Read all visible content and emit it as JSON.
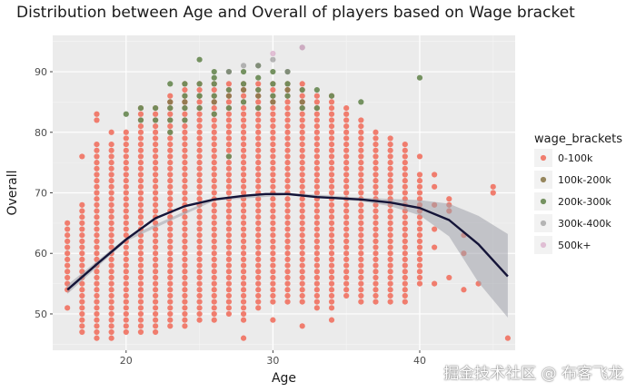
{
  "watermark": "掘金技术社区 @ 布客飞龙",
  "chart_data": {
    "type": "scatter",
    "title": "Distribution between Age and Overall of players based on Wage bracket",
    "xlabel": "Age",
    "ylabel": "Overall",
    "xlim": [
      15,
      46.5
    ],
    "ylim": [
      44,
      96
    ],
    "x_ticks": [
      20,
      30,
      40
    ],
    "y_ticks": [
      50,
      60,
      70,
      80,
      90
    ],
    "grid": true,
    "legend": {
      "title": "wage_brackets",
      "position": "right",
      "entries": [
        {
          "label": "0-100k",
          "color": "#f07d6e",
          "opacity": 1
        },
        {
          "label": "100k-200k",
          "color": "#8c7a4c",
          "opacity": 0.9
        },
        {
          "label": "200k-300k",
          "color": "#6e8c58",
          "opacity": 0.95
        },
        {
          "label": "300k-400k",
          "color": "#8a8a8a",
          "opacity": 0.6
        },
        {
          "label": "500k+",
          "color": "#d9a8c8",
          "opacity": 0.7
        }
      ]
    },
    "series": [
      {
        "name": "0-100k",
        "column_ranges": [
          {
            "x": 16,
            "ymin": 54,
            "ymax": 65,
            "extra": [
              51
            ]
          },
          {
            "x": 17,
            "ymin": 47,
            "ymax": 68,
            "extra": [
              76
            ]
          },
          {
            "x": 18,
            "ymin": 46,
            "ymax": 78,
            "extra": [
              82,
              83
            ]
          },
          {
            "x": 19,
            "ymin": 46,
            "ymax": 78,
            "extra": [
              80
            ]
          },
          {
            "x": 20,
            "ymin": 47,
            "ymax": 80
          },
          {
            "x": 21,
            "ymin": 47,
            "ymax": 84
          },
          {
            "x": 22,
            "ymin": 47,
            "ymax": 84
          },
          {
            "x": 23,
            "ymin": 48,
            "ymax": 86
          },
          {
            "x": 24,
            "ymin": 48,
            "ymax": 88
          },
          {
            "x": 25,
            "ymin": 49,
            "ymax": 88
          },
          {
            "x": 26,
            "ymin": 49,
            "ymax": 88
          },
          {
            "x": 27,
            "ymin": 50,
            "ymax": 88
          },
          {
            "x": 28,
            "ymin": 49,
            "ymax": 88,
            "extra": [
              46
            ]
          },
          {
            "x": 29,
            "ymin": 51,
            "ymax": 88
          },
          {
            "x": 30,
            "ymin": 52,
            "ymax": 88,
            "extra": [
              49
            ]
          },
          {
            "x": 31,
            "ymin": 52,
            "ymax": 88
          },
          {
            "x": 32,
            "ymin": 52,
            "ymax": 88,
            "extra": [
              48
            ]
          },
          {
            "x": 33,
            "ymin": 51,
            "ymax": 86
          },
          {
            "x": 34,
            "ymin": 51,
            "ymax": 86,
            "extra": [
              49
            ]
          },
          {
            "x": 35,
            "ymin": 53,
            "ymax": 84
          },
          {
            "x": 36,
            "ymin": 52,
            "ymax": 82
          },
          {
            "x": 37,
            "ymin": 52,
            "ymax": 80
          },
          {
            "x": 38,
            "ymin": 52,
            "ymax": 79
          },
          {
            "x": 39,
            "ymin": 52,
            "ymax": 78
          },
          {
            "x": 40,
            "ymin": 55,
            "ymax": 73,
            "extra": [
              76
            ]
          }
        ],
        "points": [
          {
            "x": 41,
            "y": 55
          },
          {
            "x": 41,
            "y": 61
          },
          {
            "x": 41,
            "y": 64
          },
          {
            "x": 41,
            "y": 68
          },
          {
            "x": 41,
            "y": 71
          },
          {
            "x": 41,
            "y": 73
          },
          {
            "x": 42,
            "y": 68
          },
          {
            "x": 42,
            "y": 69
          },
          {
            "x": 42,
            "y": 67
          },
          {
            "x": 42,
            "y": 56
          },
          {
            "x": 43,
            "y": 54
          },
          {
            "x": 43,
            "y": 60
          },
          {
            "x": 43,
            "y": 63
          },
          {
            "x": 44,
            "y": 55
          },
          {
            "x": 45,
            "y": 70
          },
          {
            "x": 45,
            "y": 71
          },
          {
            "x": 46,
            "y": 46
          }
        ]
      },
      {
        "name": "100k-200k",
        "points": [
          {
            "x": 23,
            "y": 85
          },
          {
            "x": 24,
            "y": 85
          },
          {
            "x": 25,
            "y": 86
          },
          {
            "x": 26,
            "y": 85
          },
          {
            "x": 27,
            "y": 86
          },
          {
            "x": 28,
            "y": 87
          },
          {
            "x": 29,
            "y": 86
          },
          {
            "x": 30,
            "y": 85
          },
          {
            "x": 31,
            "y": 87
          },
          {
            "x": 32,
            "y": 85
          }
        ]
      },
      {
        "name": "200k-300k",
        "points": [
          {
            "x": 20,
            "y": 83
          },
          {
            "x": 21,
            "y": 82
          },
          {
            "x": 21,
            "y": 84
          },
          {
            "x": 22,
            "y": 82
          },
          {
            "x": 22,
            "y": 84
          },
          {
            "x": 23,
            "y": 80
          },
          {
            "x": 23,
            "y": 82
          },
          {
            "x": 23,
            "y": 84
          },
          {
            "x": 23,
            "y": 88
          },
          {
            "x": 24,
            "y": 82
          },
          {
            "x": 24,
            "y": 84
          },
          {
            "x": 24,
            "y": 86
          },
          {
            "x": 24,
            "y": 88
          },
          {
            "x": 25,
            "y": 84
          },
          {
            "x": 25,
            "y": 86
          },
          {
            "x": 25,
            "y": 88
          },
          {
            "x": 25,
            "y": 92
          },
          {
            "x": 26,
            "y": 83
          },
          {
            "x": 26,
            "y": 86
          },
          {
            "x": 26,
            "y": 88
          },
          {
            "x": 26,
            "y": 89
          },
          {
            "x": 26,
            "y": 90
          },
          {
            "x": 27,
            "y": 84
          },
          {
            "x": 27,
            "y": 87
          },
          {
            "x": 27,
            "y": 90
          },
          {
            "x": 27,
            "y": 76
          },
          {
            "x": 28,
            "y": 85
          },
          {
            "x": 28,
            "y": 88
          },
          {
            "x": 28,
            "y": 90
          },
          {
            "x": 29,
            "y": 84
          },
          {
            "x": 29,
            "y": 87
          },
          {
            "x": 29,
            "y": 89
          },
          {
            "x": 29,
            "y": 91
          },
          {
            "x": 30,
            "y": 86
          },
          {
            "x": 30,
            "y": 88
          },
          {
            "x": 30,
            "y": 90
          },
          {
            "x": 31,
            "y": 86
          },
          {
            "x": 31,
            "y": 88
          },
          {
            "x": 31,
            "y": 90
          },
          {
            "x": 32,
            "y": 84
          },
          {
            "x": 32,
            "y": 87
          },
          {
            "x": 33,
            "y": 84
          },
          {
            "x": 33,
            "y": 87
          },
          {
            "x": 34,
            "y": 86
          },
          {
            "x": 36,
            "y": 85
          },
          {
            "x": 40,
            "y": 89
          }
        ]
      },
      {
        "name": "300k-400k",
        "points": [
          {
            "x": 27,
            "y": 90
          },
          {
            "x": 28,
            "y": 91
          },
          {
            "x": 29,
            "y": 91
          },
          {
            "x": 30,
            "y": 92
          },
          {
            "x": 31,
            "y": 90
          },
          {
            "x": 32,
            "y": 94
          }
        ]
      },
      {
        "name": "500k+",
        "points": [
          {
            "x": 30,
            "y": 93
          },
          {
            "x": 32,
            "y": 94
          }
        ]
      }
    ],
    "smooth": {
      "color": "#141438",
      "band_color": "#a0a3ab",
      "points": [
        {
          "x": 16,
          "y": 54
        },
        {
          "x": 18,
          "y": 58.2
        },
        {
          "x": 20,
          "y": 62.3
        },
        {
          "x": 22,
          "y": 65.8
        },
        {
          "x": 24,
          "y": 67.8
        },
        {
          "x": 26,
          "y": 68.9
        },
        {
          "x": 28,
          "y": 69.5
        },
        {
          "x": 29.5,
          "y": 69.8
        },
        {
          "x": 31,
          "y": 69.8
        },
        {
          "x": 33,
          "y": 69.3
        },
        {
          "x": 36,
          "y": 68.9
        },
        {
          "x": 38,
          "y": 68.4
        },
        {
          "x": 40,
          "y": 67.5
        },
        {
          "x": 42,
          "y": 65.5
        },
        {
          "x": 44,
          "y": 61.5
        },
        {
          "x": 46,
          "y": 56.2
        }
      ],
      "band": [
        {
          "x": 16,
          "lo": 53.3,
          "hi": 54.8
        },
        {
          "x": 20,
          "lo": 62.0,
          "hi": 62.6
        },
        {
          "x": 26,
          "lo": 68.7,
          "hi": 69.1
        },
        {
          "x": 31,
          "lo": 69.6,
          "hi": 70.0
        },
        {
          "x": 36,
          "lo": 68.6,
          "hi": 69.2
        },
        {
          "x": 38,
          "lo": 67.8,
          "hi": 69.0
        },
        {
          "x": 40,
          "lo": 66.3,
          "hi": 68.8
        },
        {
          "x": 42,
          "lo": 62.8,
          "hi": 68.2
        },
        {
          "x": 44,
          "lo": 55.2,
          "hi": 66.2
        },
        {
          "x": 46,
          "lo": 49.4,
          "hi": 63.2
        }
      ]
    }
  }
}
